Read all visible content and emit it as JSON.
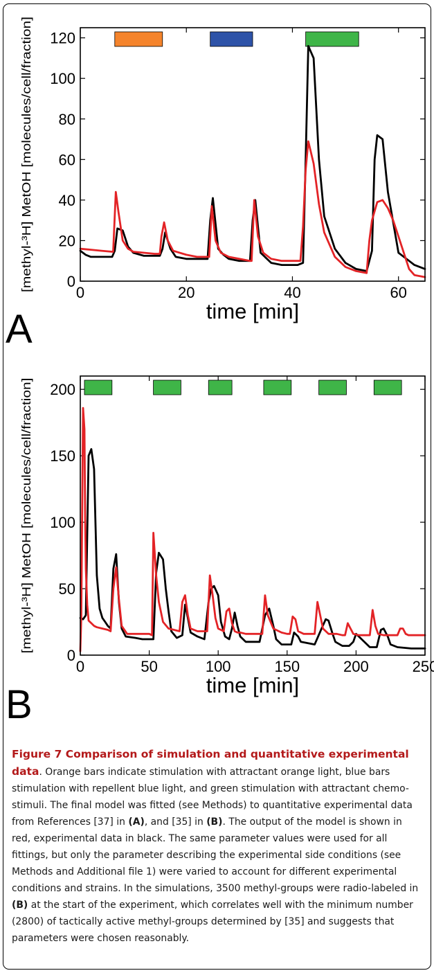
{
  "panels": [
    {
      "letter": "A",
      "ylabel": "[methyl-³H] MetOH [molecules/cell/fraction]",
      "xlabel": "time [min]",
      "xlim": [
        0,
        65
      ],
      "ylim": [
        0,
        125
      ],
      "xticks": [
        0,
        20,
        40,
        60
      ],
      "yticks": [
        0,
        20,
        40,
        60,
        80,
        100,
        120
      ],
      "stim_bars": [
        {
          "start": 6.5,
          "end": 15.5,
          "color": "#f5842c",
          "type": "orange"
        },
        {
          "start": 24.5,
          "end": 32.5,
          "color": "#2e53a8",
          "type": "blue"
        },
        {
          "start": 42.5,
          "end": 52.5,
          "color": "#3fb548",
          "type": "green"
        }
      ]
    },
    {
      "letter": "B",
      "ylabel": "[methyl-³H] MetOH [molecules/cell/fraction]",
      "xlabel": "time [min]",
      "xlim": [
        0,
        250
      ],
      "ylim": [
        0,
        210
      ],
      "xticks": [
        0,
        50,
        100,
        150,
        200,
        250
      ],
      "yticks": [
        0,
        50,
        100,
        150,
        200
      ],
      "stim_bars": [
        {
          "start": 3,
          "end": 23,
          "color": "#3fb548",
          "type": "green"
        },
        {
          "start": 53,
          "end": 73,
          "color": "#3fb548",
          "type": "green"
        },
        {
          "start": 93,
          "end": 110,
          "color": "#3fb548",
          "type": "green"
        },
        {
          "start": 133,
          "end": 153,
          "color": "#3fb548",
          "type": "green"
        },
        {
          "start": 173,
          "end": 193,
          "color": "#3fb548",
          "type": "green"
        },
        {
          "start": 213,
          "end": 233,
          "color": "#3fb548",
          "type": "green"
        }
      ]
    }
  ],
  "chart_data": [
    {
      "type": "line",
      "panel": "A",
      "xlabel": "time [min]",
      "ylabel": "[methyl-³H] MetOH [molecules/cell/fraction]",
      "xlim": [
        0,
        65
      ],
      "ylim": [
        0,
        125
      ],
      "series": [
        {
          "color": "#000000",
          "x": [
            0,
            1,
            2,
            4,
            6,
            6.5,
            7,
            8,
            9,
            10,
            12,
            14,
            15,
            15.5,
            16,
            17,
            18,
            20,
            22,
            24,
            24.5,
            25,
            26,
            27,
            28,
            30,
            32,
            32.5,
            33,
            34,
            36,
            38,
            40,
            41,
            42,
            42.5,
            43,
            44,
            45,
            46,
            48,
            50,
            52,
            54,
            55,
            55.5,
            56,
            57,
            58,
            60,
            62,
            63,
            65
          ],
          "y": [
            15,
            13,
            12,
            12,
            12,
            15,
            26,
            25,
            17,
            14,
            12.5,
            12.5,
            12.5,
            16,
            24,
            16,
            12,
            11,
            11,
            11,
            30,
            41,
            16,
            13,
            11,
            10,
            10,
            30,
            40,
            14,
            9,
            8,
            8,
            8,
            9,
            60,
            116,
            110,
            60,
            32,
            16,
            9,
            6,
            5,
            15,
            60,
            72,
            70,
            44,
            14,
            10,
            8,
            6
          ]
        },
        {
          "color": "#e32326",
          "x": [
            0,
            2,
            4,
            6,
            6.2,
            6.7,
            7.2,
            8,
            9,
            10,
            12,
            14,
            15,
            15.3,
            15.8,
            16.5,
            17.5,
            20,
            22,
            24,
            24.3,
            24.8,
            25.5,
            26.5,
            28,
            30,
            32,
            32.3,
            32.8,
            33.5,
            34.5,
            36,
            38,
            40,
            41,
            41.5,
            42,
            42.5,
            43,
            44,
            45,
            46,
            48,
            50,
            52,
            54,
            54.5,
            55,
            56,
            57,
            58,
            59,
            60,
            62,
            63,
            65
          ],
          "y": [
            16,
            15.5,
            15,
            14.5,
            14.5,
            44,
            34,
            20,
            16,
            14.5,
            14,
            13.5,
            13.5,
            22,
            29,
            20,
            15,
            13,
            12,
            12,
            12,
            37,
            20,
            14,
            12,
            11,
            10,
            10,
            40,
            22,
            14,
            11,
            10,
            10,
            10,
            10,
            27,
            55,
            69,
            58,
            38,
            24,
            12,
            7,
            5,
            4,
            20,
            30,
            39,
            40,
            36,
            30,
            22,
            6,
            3,
            2
          ]
        }
      ]
    },
    {
      "type": "line",
      "panel": "B",
      "xlabel": "time [min]",
      "ylabel": "[methyl-³H] MetOH [molecules/cell/fraction]",
      "xlim": [
        0,
        250
      ],
      "ylim": [
        0,
        210
      ],
      "series": [
        {
          "color": "#000000",
          "x": [
            0,
            2,
            4,
            6,
            8,
            10,
            12,
            14,
            16,
            18,
            20,
            22,
            24,
            26,
            28,
            30,
            33,
            40,
            45,
            50,
            53,
            55,
            57,
            60,
            62,
            64,
            66,
            70,
            74,
            76,
            78,
            80,
            85,
            90,
            93,
            95,
            97,
            100,
            102,
            105,
            108,
            110,
            112,
            114,
            116,
            120,
            130,
            134,
            137,
            140,
            142,
            146,
            150,
            153,
            155,
            158,
            160,
            170,
            175,
            178,
            180,
            183,
            185,
            190,
            195,
            198,
            200,
            210,
            215,
            218,
            220,
            223,
            225,
            230,
            240,
            250
          ],
          "y": [
            28,
            27,
            30,
            150,
            155,
            140,
            60,
            35,
            28,
            25,
            22,
            20,
            65,
            76,
            40,
            20,
            14,
            13,
            12,
            12,
            12,
            62,
            77,
            72,
            50,
            33,
            18,
            13,
            15,
            38,
            28,
            17,
            14,
            12,
            40,
            50,
            52,
            45,
            25,
            14,
            12,
            20,
            32,
            22,
            14,
            10,
            10,
            30,
            35,
            22,
            12,
            8,
            8,
            8,
            17,
            14,
            10,
            8,
            20,
            27,
            26,
            16,
            10,
            7,
            7,
            10,
            16,
            6,
            6,
            19,
            20,
            14,
            8,
            6,
            5,
            5
          ]
        },
        {
          "color": "#e32326",
          "x": [
            0,
            0.7,
            2,
            3,
            3.5,
            4,
            5,
            6,
            8,
            10,
            12,
            16,
            20,
            22,
            24,
            26,
            28,
            30,
            34,
            40,
            45,
            50,
            52,
            53,
            55,
            57,
            60,
            64,
            68,
            72,
            74,
            76,
            78,
            80,
            85,
            90,
            92,
            94,
            96,
            98,
            100,
            104,
            106,
            108,
            110,
            112,
            114,
            116,
            120,
            128,
            130,
            132,
            134,
            136,
            140,
            146,
            150,
            152,
            154,
            156,
            158,
            162,
            168,
            170,
            172,
            174,
            176,
            180,
            186,
            190,
            192,
            194,
            196,
            198,
            202,
            208,
            210,
            212,
            214,
            216,
            220,
            226,
            230,
            232,
            234,
            236,
            238,
            242,
            250
          ],
          "y": [
            3,
            28,
            186,
            170,
            105,
            65,
            38,
            26,
            24,
            22,
            21,
            20,
            19,
            18,
            50,
            66,
            42,
            22,
            16,
            16,
            16,
            16,
            15,
            92,
            60,
            40,
            25,
            20,
            19,
            18,
            40,
            45,
            30,
            20,
            18,
            18,
            18,
            60,
            45,
            28,
            20,
            18,
            33,
            35,
            24,
            18,
            17,
            17,
            16,
            16,
            16,
            16,
            45,
            30,
            20,
            17,
            16,
            16,
            29,
            27,
            18,
            16,
            16,
            16,
            40,
            30,
            20,
            16,
            16,
            15,
            15,
            24,
            20,
            16,
            15,
            15,
            15,
            34,
            22,
            16,
            15,
            15,
            15,
            20,
            20,
            16,
            15,
            15,
            15
          ]
        }
      ]
    }
  ],
  "caption": {
    "title": "Figure 7 Comparison of simulation and quantitative experimental data",
    "parts": [
      {
        "t": ". Orange bars indicate stimulation with attractant orange light, blue bars stimulation with repellent blue light, and green stimulation with attractant chemo-stimuli. The final model was fitted (see Methods) to quantitative experimental data from References [37] in "
      },
      {
        "b": "(A)"
      },
      {
        "t": ", and [35] in "
      },
      {
        "b": "(B)"
      },
      {
        "t": ". The output of the model is shown in red, experimental data in black. The same parameter values were used for all fittings, but only the parameter describing the experimental side conditions (see Methods and Additional file 1) were varied to account for different experimental conditions and strains. In the simulations, 3500 methyl-groups were radio-labeled in "
      },
      {
        "b": "(B)"
      },
      {
        "t": " at the start of the experiment, which correlates well with the minimum number (2800) of tactically active methyl-groups determined by [35] and suggests that parameters were chosen reasonably."
      }
    ]
  }
}
